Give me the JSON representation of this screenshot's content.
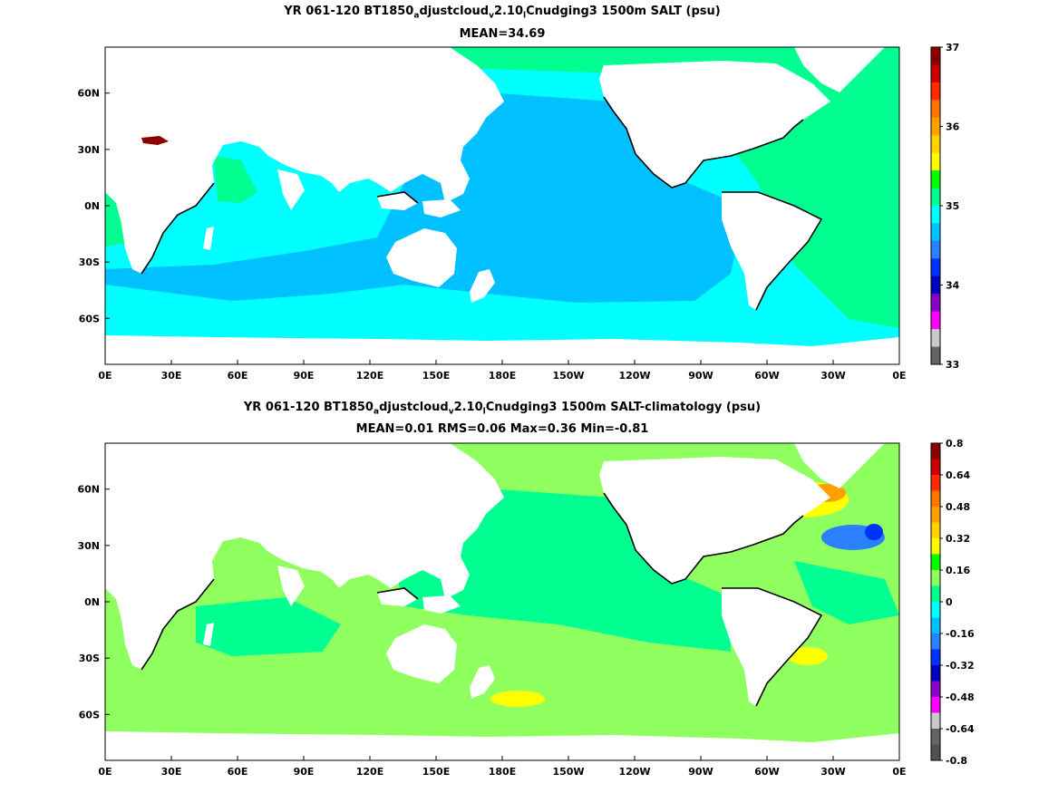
{
  "panels": [
    {
      "title_parts": [
        "YR 061-120 BT1850",
        "a",
        "djustcloud",
        "v",
        "2.10",
        "l",
        "Cnudging3 1500m SALT (psu)"
      ],
      "subtitle": "MEAN=34.69",
      "colorbar": {
        "labels": [
          "37",
          "36",
          "35",
          "34",
          "33"
        ],
        "colors": [
          "#8b0000",
          "#cc0000",
          "#ff2a00",
          "#ff7700",
          "#ff9f00",
          "#ffd200",
          "#ffff00",
          "#00ff00",
          "#00ff90",
          "#00ffff",
          "#00c0ff",
          "#2a80ff",
          "#0030ff",
          "#0000c0",
          "#8a00c8",
          "#ff00ff",
          "#c8c8c8",
          "#646464"
        ]
      },
      "fields": {
        "ocean_main": "#00c0ff",
        "southern": "#00ffff",
        "atlantic": "#00ff90",
        "arctic": "#00ff90",
        "med": "#8b0000"
      }
    },
    {
      "title_parts": [
        "YR 061-120 BT1850",
        "a",
        "djustcloud",
        "v",
        "2.10",
        "l",
        "Cnudging3 1500m SALT-climatology (psu)"
      ],
      "subtitle": "MEAN=0.01   RMS=0.06   Max=0.36   Min=-0.81",
      "colorbar": {
        "labels": [
          "0.8",
          "0.64",
          "0.48",
          "0.32",
          "0.16",
          "0",
          "-0.16",
          "-0.32",
          "-0.48",
          "-0.64",
          "-0.8"
        ],
        "colors": [
          "#8b0000",
          "#cc0000",
          "#ff2a00",
          "#ff7700",
          "#ff9f00",
          "#ffd200",
          "#ffff00",
          "#00ff00",
          "#90ff60",
          "#00ff90",
          "#00ffff",
          "#00c0ff",
          "#2a80ff",
          "#0030ff",
          "#0000c0",
          "#8a00c8",
          "#ff00ff",
          "#c8c8c8",
          "#646464",
          "#505050"
        ]
      },
      "fields": {
        "ocean_main": "#90ff60",
        "patches": "#00ff90",
        "anomaly_pos": "#ffff00",
        "anomaly_neg": "#2a80ff"
      }
    }
  ],
  "axes": {
    "x_ticks": [
      "0E",
      "30E",
      "60E",
      "90E",
      "120E",
      "150E",
      "180E",
      "150W",
      "120W",
      "90W",
      "60W",
      "30W",
      "0E"
    ],
    "y_ticks": [
      "60N",
      "30N",
      "0N",
      "30S",
      "60S"
    ]
  }
}
